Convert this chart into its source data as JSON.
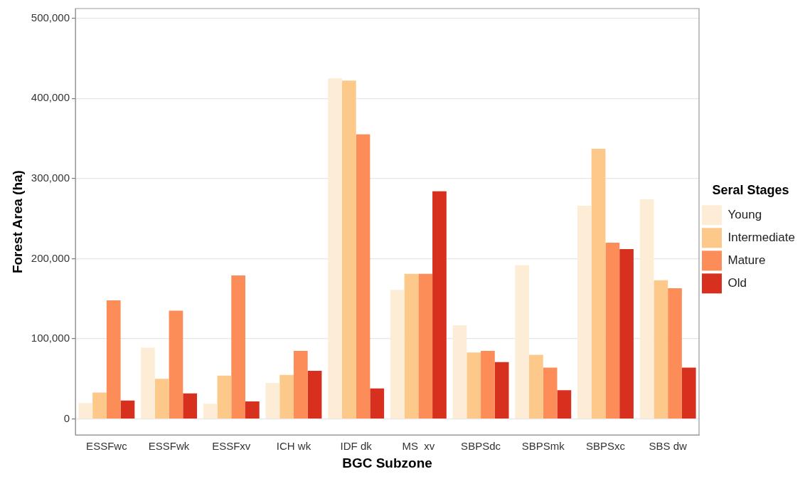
{
  "chart_data": {
    "type": "bar",
    "xlabel": "BGC Subzone",
    "ylabel": "Forest Area (ha)",
    "legend_title": "Seral Stages",
    "legend": "right",
    "categories": [
      "ESSFwc",
      "ESSFwk",
      "ESSFxv",
      "ICH wk",
      "IDF dk",
      "MS  xv",
      "SBPSdc",
      "SBPSmk",
      "SBPSxc",
      "SBS dw"
    ],
    "series": [
      {
        "name": "Young",
        "color": "#feedd6",
        "values": [
          20000,
          89000,
          19000,
          45000,
          425000,
          161000,
          117000,
          192000,
          266000,
          274000
        ]
      },
      {
        "name": "Intermediate",
        "color": "#fdc98a",
        "values": [
          33000,
          50000,
          54000,
          55000,
          422000,
          181000,
          83000,
          80000,
          337000,
          173000
        ]
      },
      {
        "name": "Mature",
        "color": "#fc8d59",
        "values": [
          148000,
          135000,
          179000,
          85000,
          355000,
          181000,
          85000,
          64000,
          220000,
          163000
        ]
      },
      {
        "name": "Old",
        "color": "#d7301f",
        "values": [
          23000,
          32000,
          22000,
          60000,
          38000,
          284000,
          71000,
          36000,
          212000,
          64000
        ]
      }
    ],
    "ylim": [
      -20000,
      512000
    ],
    "yticks": [
      0,
      {
        "value": 100000,
        "label": "100,000"
      },
      {
        "value": 200000,
        "label": "200,000"
      },
      {
        "value": 300000,
        "label": "300,000"
      },
      {
        "value": 400000,
        "label": "400,000"
      },
      {
        "value": 500000,
        "label": "500,000"
      }
    ],
    "grid": "y"
  }
}
